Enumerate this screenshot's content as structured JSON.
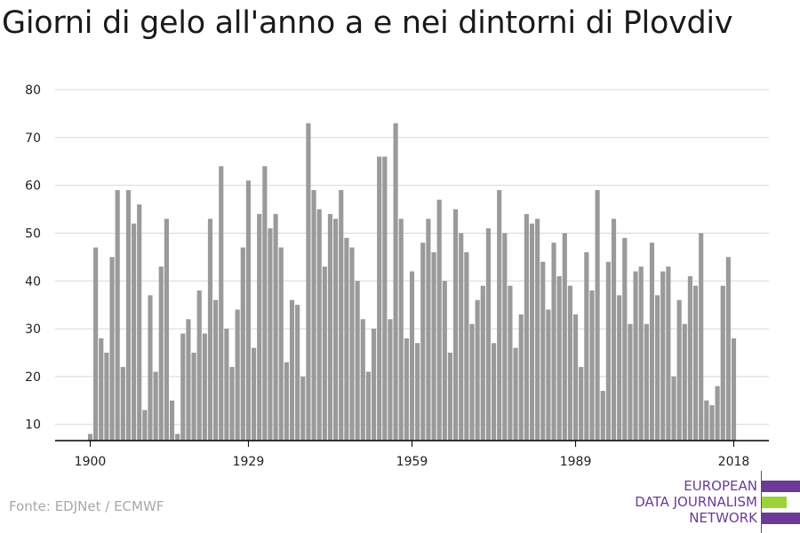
{
  "title": "Giorni di gelo all'anno a e nei dintorni di Plovdiv",
  "source": "Fonte: EDJNet / ECMWF",
  "logo": {
    "lines": [
      "EUROPEAN",
      "DATA JOURNALISM",
      "NETWORK"
    ],
    "colors": {
      "purple": "#6c3b96",
      "green": "#9bd33a"
    }
  },
  "colors": {
    "bar": "#9a9a9a",
    "grid": "#d8d8d8",
    "axis": "#000000"
  },
  "chart_data": {
    "type": "bar",
    "title": "Giorni di gelo all'anno a e nei dintorni di Plovdiv",
    "xlabel": "",
    "ylabel": "",
    "x": [
      1900,
      1901,
      1902,
      1903,
      1904,
      1905,
      1906,
      1907,
      1908,
      1909,
      1910,
      1911,
      1912,
      1913,
      1914,
      1915,
      1916,
      1917,
      1918,
      1919,
      1920,
      1921,
      1922,
      1923,
      1924,
      1925,
      1926,
      1927,
      1928,
      1929,
      1930,
      1931,
      1932,
      1933,
      1934,
      1935,
      1936,
      1937,
      1938,
      1939,
      1940,
      1941,
      1942,
      1943,
      1944,
      1945,
      1946,
      1947,
      1948,
      1949,
      1950,
      1951,
      1952,
      1953,
      1954,
      1955,
      1956,
      1957,
      1958,
      1959,
      1960,
      1961,
      1962,
      1963,
      1964,
      1965,
      1966,
      1967,
      1968,
      1969,
      1970,
      1971,
      1972,
      1973,
      1974,
      1975,
      1976,
      1977,
      1978,
      1979,
      1980,
      1981,
      1982,
      1983,
      1984,
      1985,
      1986,
      1987,
      1988,
      1989,
      1990,
      1991,
      1992,
      1993,
      1994,
      1995,
      1996,
      1997,
      1998,
      1999,
      2000,
      2001,
      2002,
      2003,
      2004,
      2005,
      2006,
      2007,
      2008,
      2009,
      2010,
      2011,
      2012,
      2013,
      2014,
      2015,
      2016,
      2017,
      2018
    ],
    "values": [
      8,
      47,
      28,
      25,
      45,
      59,
      22,
      59,
      52,
      56,
      13,
      37,
      21,
      43,
      53,
      15,
      8,
      29,
      32,
      25,
      38,
      29,
      53,
      36,
      64,
      30,
      22,
      34,
      47,
      61,
      26,
      54,
      64,
      51,
      54,
      47,
      23,
      36,
      35,
      20,
      73,
      59,
      55,
      43,
      54,
      53,
      59,
      49,
      47,
      40,
      32,
      21,
      30,
      66,
      66,
      32,
      73,
      53,
      28,
      42,
      27,
      48,
      53,
      46,
      57,
      40,
      25,
      55,
      50,
      46,
      31,
      36,
      39,
      51,
      27,
      59,
      50,
      39,
      26,
      33,
      54,
      52,
      53,
      44,
      34,
      48,
      41,
      50,
      39,
      33,
      22,
      46,
      38,
      59,
      17,
      44,
      53,
      37,
      49,
      31,
      42,
      43,
      31,
      48,
      37,
      42,
      43,
      20,
      36,
      31,
      41,
      39,
      50,
      15,
      14,
      18,
      39,
      45,
      28
    ],
    "xticks": [
      1900,
      1929,
      1959,
      1989,
      2018
    ],
    "yticks": [
      10,
      20,
      30,
      40,
      50,
      60,
      70,
      80
    ],
    "ylim": [
      6.6,
      80
    ],
    "grid": true,
    "legend": "none"
  }
}
